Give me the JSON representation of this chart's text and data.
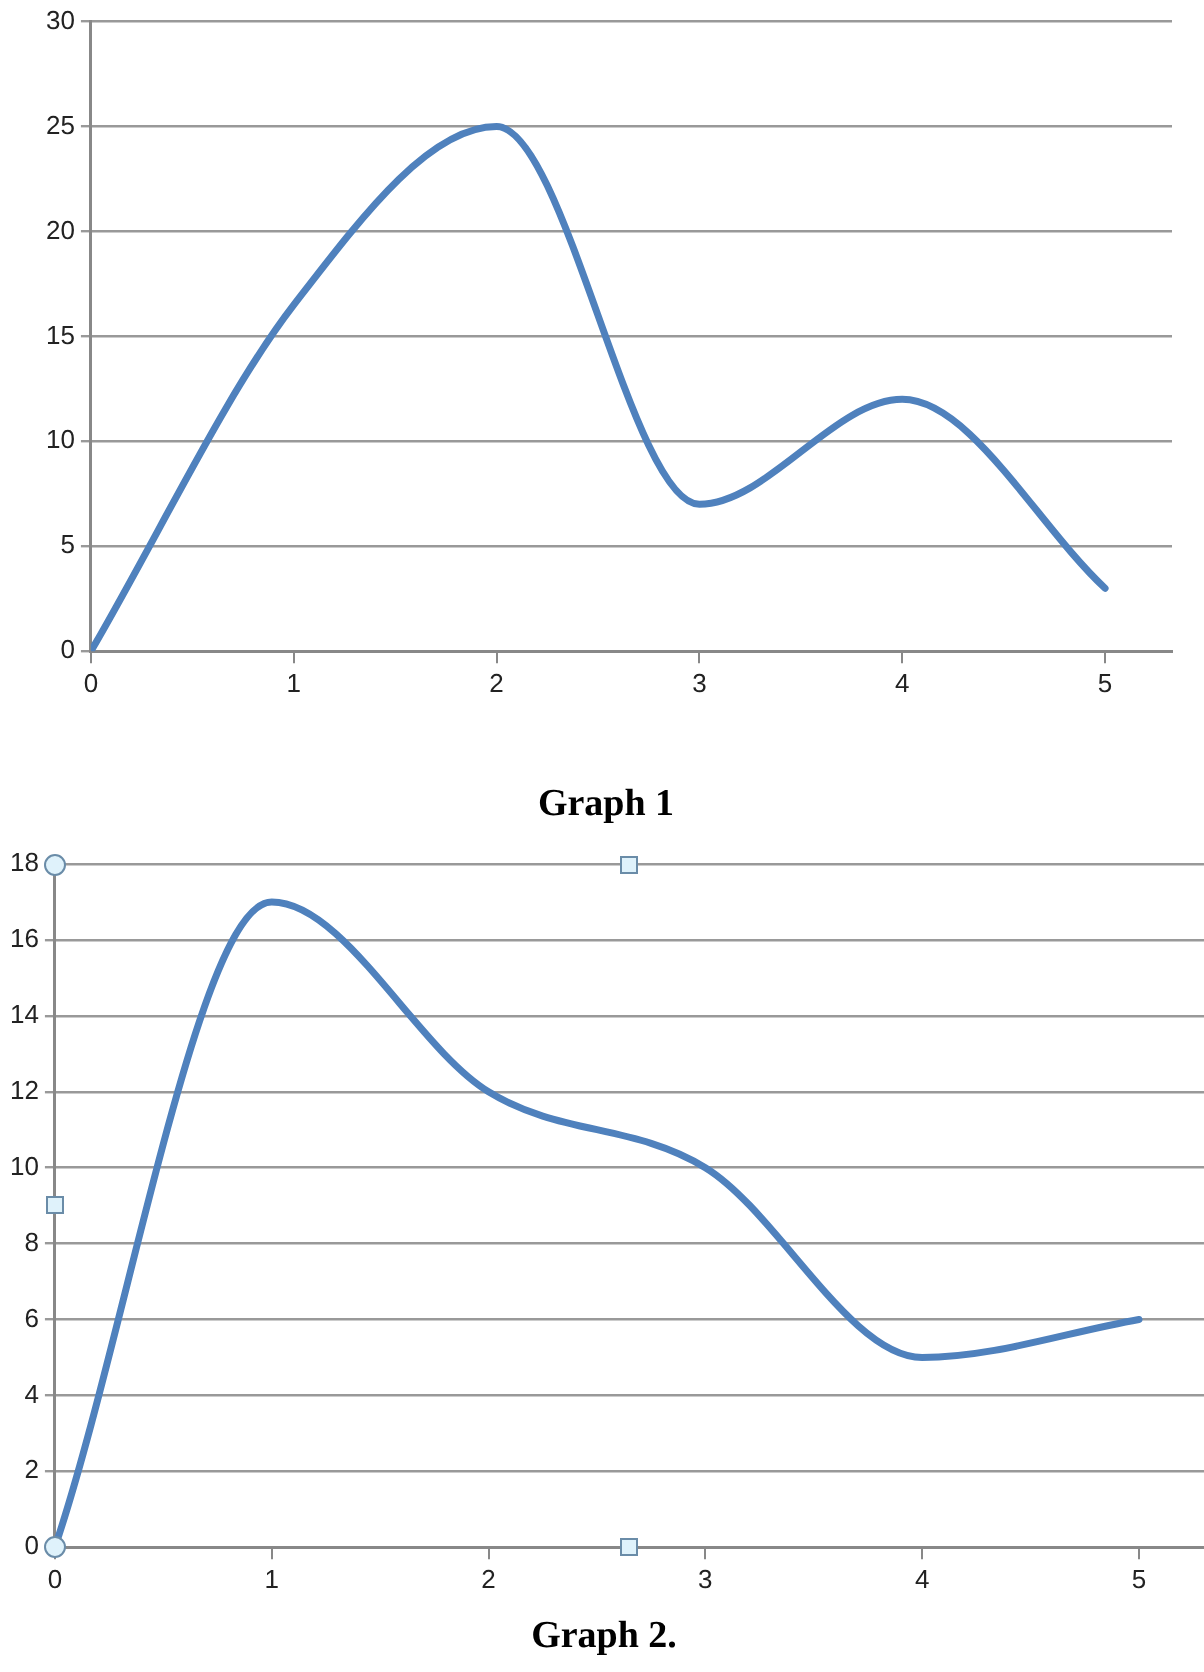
{
  "chart_data": [
    {
      "type": "line",
      "title": "Graph 1",
      "x": [
        0,
        1,
        2,
        3,
        4,
        5
      ],
      "series": [
        {
          "color": "#4f81bd",
          "values": [
            0,
            16.5,
            25,
            7,
            12,
            3
          ]
        }
      ],
      "xlim": [
        0,
        5.33
      ],
      "xticks": [
        0,
        1,
        2,
        3,
        4,
        5
      ],
      "ylim": [
        0,
        30
      ],
      "yticks": [
        0,
        5,
        10,
        15,
        20,
        25,
        30
      ],
      "grid": "y",
      "legend": false,
      "marker": "none",
      "line_style": "solid"
    },
    {
      "type": "line",
      "title": "Graph 2.",
      "x": [
        0,
        1,
        2,
        3,
        4,
        5
      ],
      "series": [
        {
          "color": "#4f81bd",
          "values": [
            0,
            17,
            12,
            10,
            5,
            6
          ]
        }
      ],
      "xlim": [
        0,
        5.3
      ],
      "xticks": [
        0,
        1,
        2,
        3,
        4,
        5
      ],
      "ylim": [
        0,
        18
      ],
      "yticks": [
        0,
        2,
        4,
        6,
        8,
        10,
        12,
        14,
        16,
        18
      ],
      "grid": "y",
      "legend": false,
      "marker": "none",
      "line_style": "solid"
    }
  ]
}
